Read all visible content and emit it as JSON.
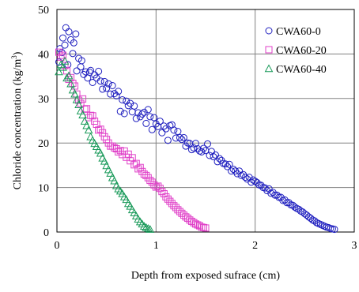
{
  "chart_data": {
    "type": "scatter",
    "title": "",
    "xlabel": "Depth from exposed sufrace (cm)",
    "ylabel_main": "Chloride concentration (kg/m",
    "ylabel_sup": "3",
    "ylabel_close": ")",
    "xlim": [
      0,
      3
    ],
    "ylim": [
      0,
      50
    ],
    "xticks": [
      "0",
      "1",
      "2",
      "3"
    ],
    "yticks": [
      "0",
      "10",
      "20",
      "30",
      "40",
      "50"
    ],
    "grid": true,
    "legend_position": "top-right",
    "series": [
      {
        "name": "CWA60-0",
        "marker": "circle",
        "color": "#1f1fbf",
        "points": [
          [
            0.02,
            38.2
          ],
          [
            0.03,
            41.2
          ],
          [
            0.05,
            40.3
          ],
          [
            0.06,
            43.6
          ],
          [
            0.08,
            42.0
          ],
          [
            0.09,
            45.9
          ],
          [
            0.11,
            37.6
          ],
          [
            0.12,
            45.0
          ],
          [
            0.14,
            43.2
          ],
          [
            0.16,
            40.1
          ],
          [
            0.17,
            42.5
          ],
          [
            0.19,
            44.5
          ],
          [
            0.2,
            36.2
          ],
          [
            0.22,
            39.0
          ],
          [
            0.24,
            37.1
          ],
          [
            0.25,
            38.5
          ],
          [
            0.27,
            35.4
          ],
          [
            0.29,
            36.0
          ],
          [
            0.31,
            34.6
          ],
          [
            0.33,
            35.9
          ],
          [
            0.34,
            36.3
          ],
          [
            0.36,
            33.6
          ],
          [
            0.38,
            35.3
          ],
          [
            0.4,
            34.6
          ],
          [
            0.42,
            36.1
          ],
          [
            0.44,
            33.9
          ],
          [
            0.46,
            32.1
          ],
          [
            0.48,
            33.8
          ],
          [
            0.5,
            32.3
          ],
          [
            0.52,
            33.3
          ],
          [
            0.54,
            31.0
          ],
          [
            0.56,
            32.9
          ],
          [
            0.58,
            31.1
          ],
          [
            0.6,
            30.6
          ],
          [
            0.62,
            31.6
          ],
          [
            0.64,
            27.1
          ],
          [
            0.66,
            29.7
          ],
          [
            0.68,
            26.6
          ],
          [
            0.7,
            29.4
          ],
          [
            0.72,
            28.4
          ],
          [
            0.74,
            28.9
          ],
          [
            0.76,
            27.0
          ],
          [
            0.78,
            28.3
          ],
          [
            0.8,
            25.5
          ],
          [
            0.82,
            26.8
          ],
          [
            0.84,
            25.9
          ],
          [
            0.86,
            26.5
          ],
          [
            0.88,
            26.9
          ],
          [
            0.9,
            24.4
          ],
          [
            0.92,
            27.5
          ],
          [
            0.94,
            25.9
          ],
          [
            0.96,
            23.0
          ],
          [
            0.98,
            25.7
          ],
          [
            1.0,
            24.3
          ],
          [
            1.02,
            23.7
          ],
          [
            1.04,
            24.9
          ],
          [
            1.06,
            22.3
          ],
          [
            1.08,
            23.8
          ],
          [
            1.1,
            23.2
          ],
          [
            1.12,
            20.6
          ],
          [
            1.14,
            23.9
          ],
          [
            1.16,
            24.1
          ],
          [
            1.18,
            22.9
          ],
          [
            1.2,
            21.1
          ],
          [
            1.22,
            22.6
          ],
          [
            1.24,
            21.2
          ],
          [
            1.26,
            20.8
          ],
          [
            1.28,
            21.2
          ],
          [
            1.3,
            19.3
          ],
          [
            1.32,
            20.0
          ],
          [
            1.34,
            19.9
          ],
          [
            1.36,
            18.5
          ],
          [
            1.38,
            18.9
          ],
          [
            1.4,
            19.9
          ],
          [
            1.42,
            18.7
          ],
          [
            1.44,
            18.2
          ],
          [
            1.46,
            18.0
          ],
          [
            1.48,
            18.8
          ],
          [
            1.5,
            18.3
          ],
          [
            1.52,
            19.8
          ],
          [
            1.54,
            17.2
          ],
          [
            1.56,
            18.1
          ],
          [
            1.58,
            16.9
          ],
          [
            1.6,
            17.3
          ],
          [
            1.62,
            15.8
          ],
          [
            1.64,
            16.5
          ],
          [
            1.66,
            16.1
          ],
          [
            1.68,
            15.4
          ],
          [
            1.7,
            15.3
          ],
          [
            1.72,
            14.7
          ],
          [
            1.74,
            15.2
          ],
          [
            1.76,
            13.7
          ],
          [
            1.78,
            14.1
          ],
          [
            1.8,
            13.7
          ],
          [
            1.82,
            13.1
          ],
          [
            1.84,
            13.7
          ],
          [
            1.86,
            12.7
          ],
          [
            1.88,
            12.9
          ],
          [
            1.9,
            12.3
          ],
          [
            1.92,
            11.9
          ],
          [
            1.94,
            12.3
          ],
          [
            1.96,
            11.2
          ],
          [
            1.98,
            11.7
          ],
          [
            2.0,
            11.4
          ],
          [
            2.02,
            11.1
          ],
          [
            2.04,
            10.6
          ],
          [
            2.06,
            10.5
          ],
          [
            2.08,
            10.0
          ],
          [
            2.1,
            9.9
          ],
          [
            2.12,
            9.3
          ],
          [
            2.14,
            9.7
          ],
          [
            2.16,
            8.7
          ],
          [
            2.18,
            8.9
          ],
          [
            2.2,
            8.3
          ],
          [
            2.22,
            8.3
          ],
          [
            2.24,
            7.8
          ],
          [
            2.26,
            7.8
          ],
          [
            2.28,
            7.1
          ],
          [
            2.3,
            7.2
          ],
          [
            2.32,
            6.6
          ],
          [
            2.34,
            6.6
          ],
          [
            2.36,
            6.1
          ],
          [
            2.38,
            6.0
          ],
          [
            2.4,
            5.6
          ],
          [
            2.42,
            5.3
          ],
          [
            2.44,
            5.1
          ],
          [
            2.46,
            4.7
          ],
          [
            2.48,
            4.5
          ],
          [
            2.5,
            4.1
          ],
          [
            2.52,
            3.8
          ],
          [
            2.54,
            3.4
          ],
          [
            2.56,
            3.1
          ],
          [
            2.58,
            2.7
          ],
          [
            2.6,
            2.5
          ],
          [
            2.62,
            2.1
          ],
          [
            2.64,
            1.9
          ],
          [
            2.66,
            1.7
          ],
          [
            2.68,
            1.5
          ],
          [
            2.7,
            1.3
          ],
          [
            2.72,
            1.1
          ],
          [
            2.74,
            1.0
          ],
          [
            2.76,
            0.8
          ],
          [
            2.78,
            0.7
          ],
          [
            2.8,
            0.6
          ]
        ]
      },
      {
        "name": "CWA60-20",
        "marker": "square",
        "color": "#e040c8",
        "points": [
          [
            0.02,
            40.4
          ],
          [
            0.04,
            39.3
          ],
          [
            0.06,
            39.7
          ],
          [
            0.08,
            37.4
          ],
          [
            0.1,
            36.2
          ],
          [
            0.12,
            34.3
          ],
          [
            0.14,
            34.7
          ],
          [
            0.16,
            33.4
          ],
          [
            0.18,
            32.8
          ],
          [
            0.2,
            31.0
          ],
          [
            0.22,
            29.6
          ],
          [
            0.24,
            28.9
          ],
          [
            0.26,
            29.9
          ],
          [
            0.28,
            27.6
          ],
          [
            0.3,
            27.7
          ],
          [
            0.32,
            25.7
          ],
          [
            0.34,
            26.2
          ],
          [
            0.36,
            26.1
          ],
          [
            0.38,
            24.9
          ],
          [
            0.4,
            24.2
          ],
          [
            0.42,
            22.9
          ],
          [
            0.44,
            23.1
          ],
          [
            0.46,
            22.3
          ],
          [
            0.48,
            21.4
          ],
          [
            0.5,
            20.8
          ],
          [
            0.52,
            20.0
          ],
          [
            0.54,
            19.3
          ],
          [
            0.56,
            19.3
          ],
          [
            0.58,
            18.9
          ],
          [
            0.6,
            18.7
          ],
          [
            0.62,
            18.0
          ],
          [
            0.64,
            18.3
          ],
          [
            0.66,
            17.4
          ],
          [
            0.68,
            18.2
          ],
          [
            0.7,
            16.8
          ],
          [
            0.72,
            17.5
          ],
          [
            0.74,
            16.0
          ],
          [
            0.76,
            16.7
          ],
          [
            0.78,
            15.1
          ],
          [
            0.8,
            15.4
          ],
          [
            0.82,
            14.2
          ],
          [
            0.84,
            14.5
          ],
          [
            0.86,
            13.6
          ],
          [
            0.88,
            13.0
          ],
          [
            0.9,
            12.7
          ],
          [
            0.92,
            12.2
          ],
          [
            0.94,
            11.6
          ],
          [
            0.96,
            11.2
          ],
          [
            0.98,
            10.6
          ],
          [
            1.0,
            10.1
          ],
          [
            1.02,
            10.3
          ],
          [
            1.04,
            9.8
          ],
          [
            1.06,
            9.1
          ],
          [
            1.08,
            8.6
          ],
          [
            1.1,
            7.9
          ],
          [
            1.12,
            7.4
          ],
          [
            1.14,
            6.9
          ],
          [
            1.16,
            6.4
          ],
          [
            1.18,
            5.9
          ],
          [
            1.2,
            5.5
          ],
          [
            1.22,
            5.0
          ],
          [
            1.24,
            4.6
          ],
          [
            1.26,
            4.2
          ],
          [
            1.28,
            3.8
          ],
          [
            1.3,
            3.4
          ],
          [
            1.32,
            3.1
          ],
          [
            1.34,
            2.7
          ],
          [
            1.36,
            2.4
          ],
          [
            1.38,
            2.1
          ],
          [
            1.4,
            1.8
          ],
          [
            1.42,
            1.6
          ],
          [
            1.44,
            1.4
          ],
          [
            1.46,
            1.1
          ],
          [
            1.48,
            1.0
          ],
          [
            1.5,
            0.9
          ]
        ]
      },
      {
        "name": "CWA60-40",
        "marker": "triangle",
        "color": "#1a9a5a",
        "points": [
          [
            0.02,
            36.0
          ],
          [
            0.04,
            37.6
          ],
          [
            0.06,
            37.0
          ],
          [
            0.08,
            38.4
          ],
          [
            0.1,
            34.6
          ],
          [
            0.12,
            35.1
          ],
          [
            0.14,
            33.3
          ],
          [
            0.16,
            31.9
          ],
          [
            0.18,
            31.0
          ],
          [
            0.2,
            29.7
          ],
          [
            0.22,
            28.6
          ],
          [
            0.24,
            27.2
          ],
          [
            0.26,
            26.3
          ],
          [
            0.28,
            24.9
          ],
          [
            0.3,
            23.9
          ],
          [
            0.32,
            22.9
          ],
          [
            0.34,
            21.4
          ],
          [
            0.36,
            20.6
          ],
          [
            0.38,
            19.9
          ],
          [
            0.4,
            19.2
          ],
          [
            0.42,
            18.4
          ],
          [
            0.44,
            17.7
          ],
          [
            0.46,
            16.6
          ],
          [
            0.48,
            15.9
          ],
          [
            0.5,
            14.9
          ],
          [
            0.52,
            14.0
          ],
          [
            0.54,
            13.2
          ],
          [
            0.56,
            12.2
          ],
          [
            0.58,
            11.5
          ],
          [
            0.6,
            10.4
          ],
          [
            0.62,
            9.7
          ],
          [
            0.64,
            9.2
          ],
          [
            0.66,
            8.6
          ],
          [
            0.68,
            7.9
          ],
          [
            0.7,
            7.3
          ],
          [
            0.72,
            6.4
          ],
          [
            0.74,
            5.8
          ],
          [
            0.76,
            5.0
          ],
          [
            0.78,
            4.3
          ],
          [
            0.8,
            3.6
          ],
          [
            0.82,
            2.9
          ],
          [
            0.84,
            2.3
          ],
          [
            0.86,
            1.8
          ],
          [
            0.88,
            1.3
          ],
          [
            0.9,
            1.0
          ],
          [
            0.92,
            0.8
          ],
          [
            0.94,
            0.6
          ]
        ]
      }
    ]
  }
}
